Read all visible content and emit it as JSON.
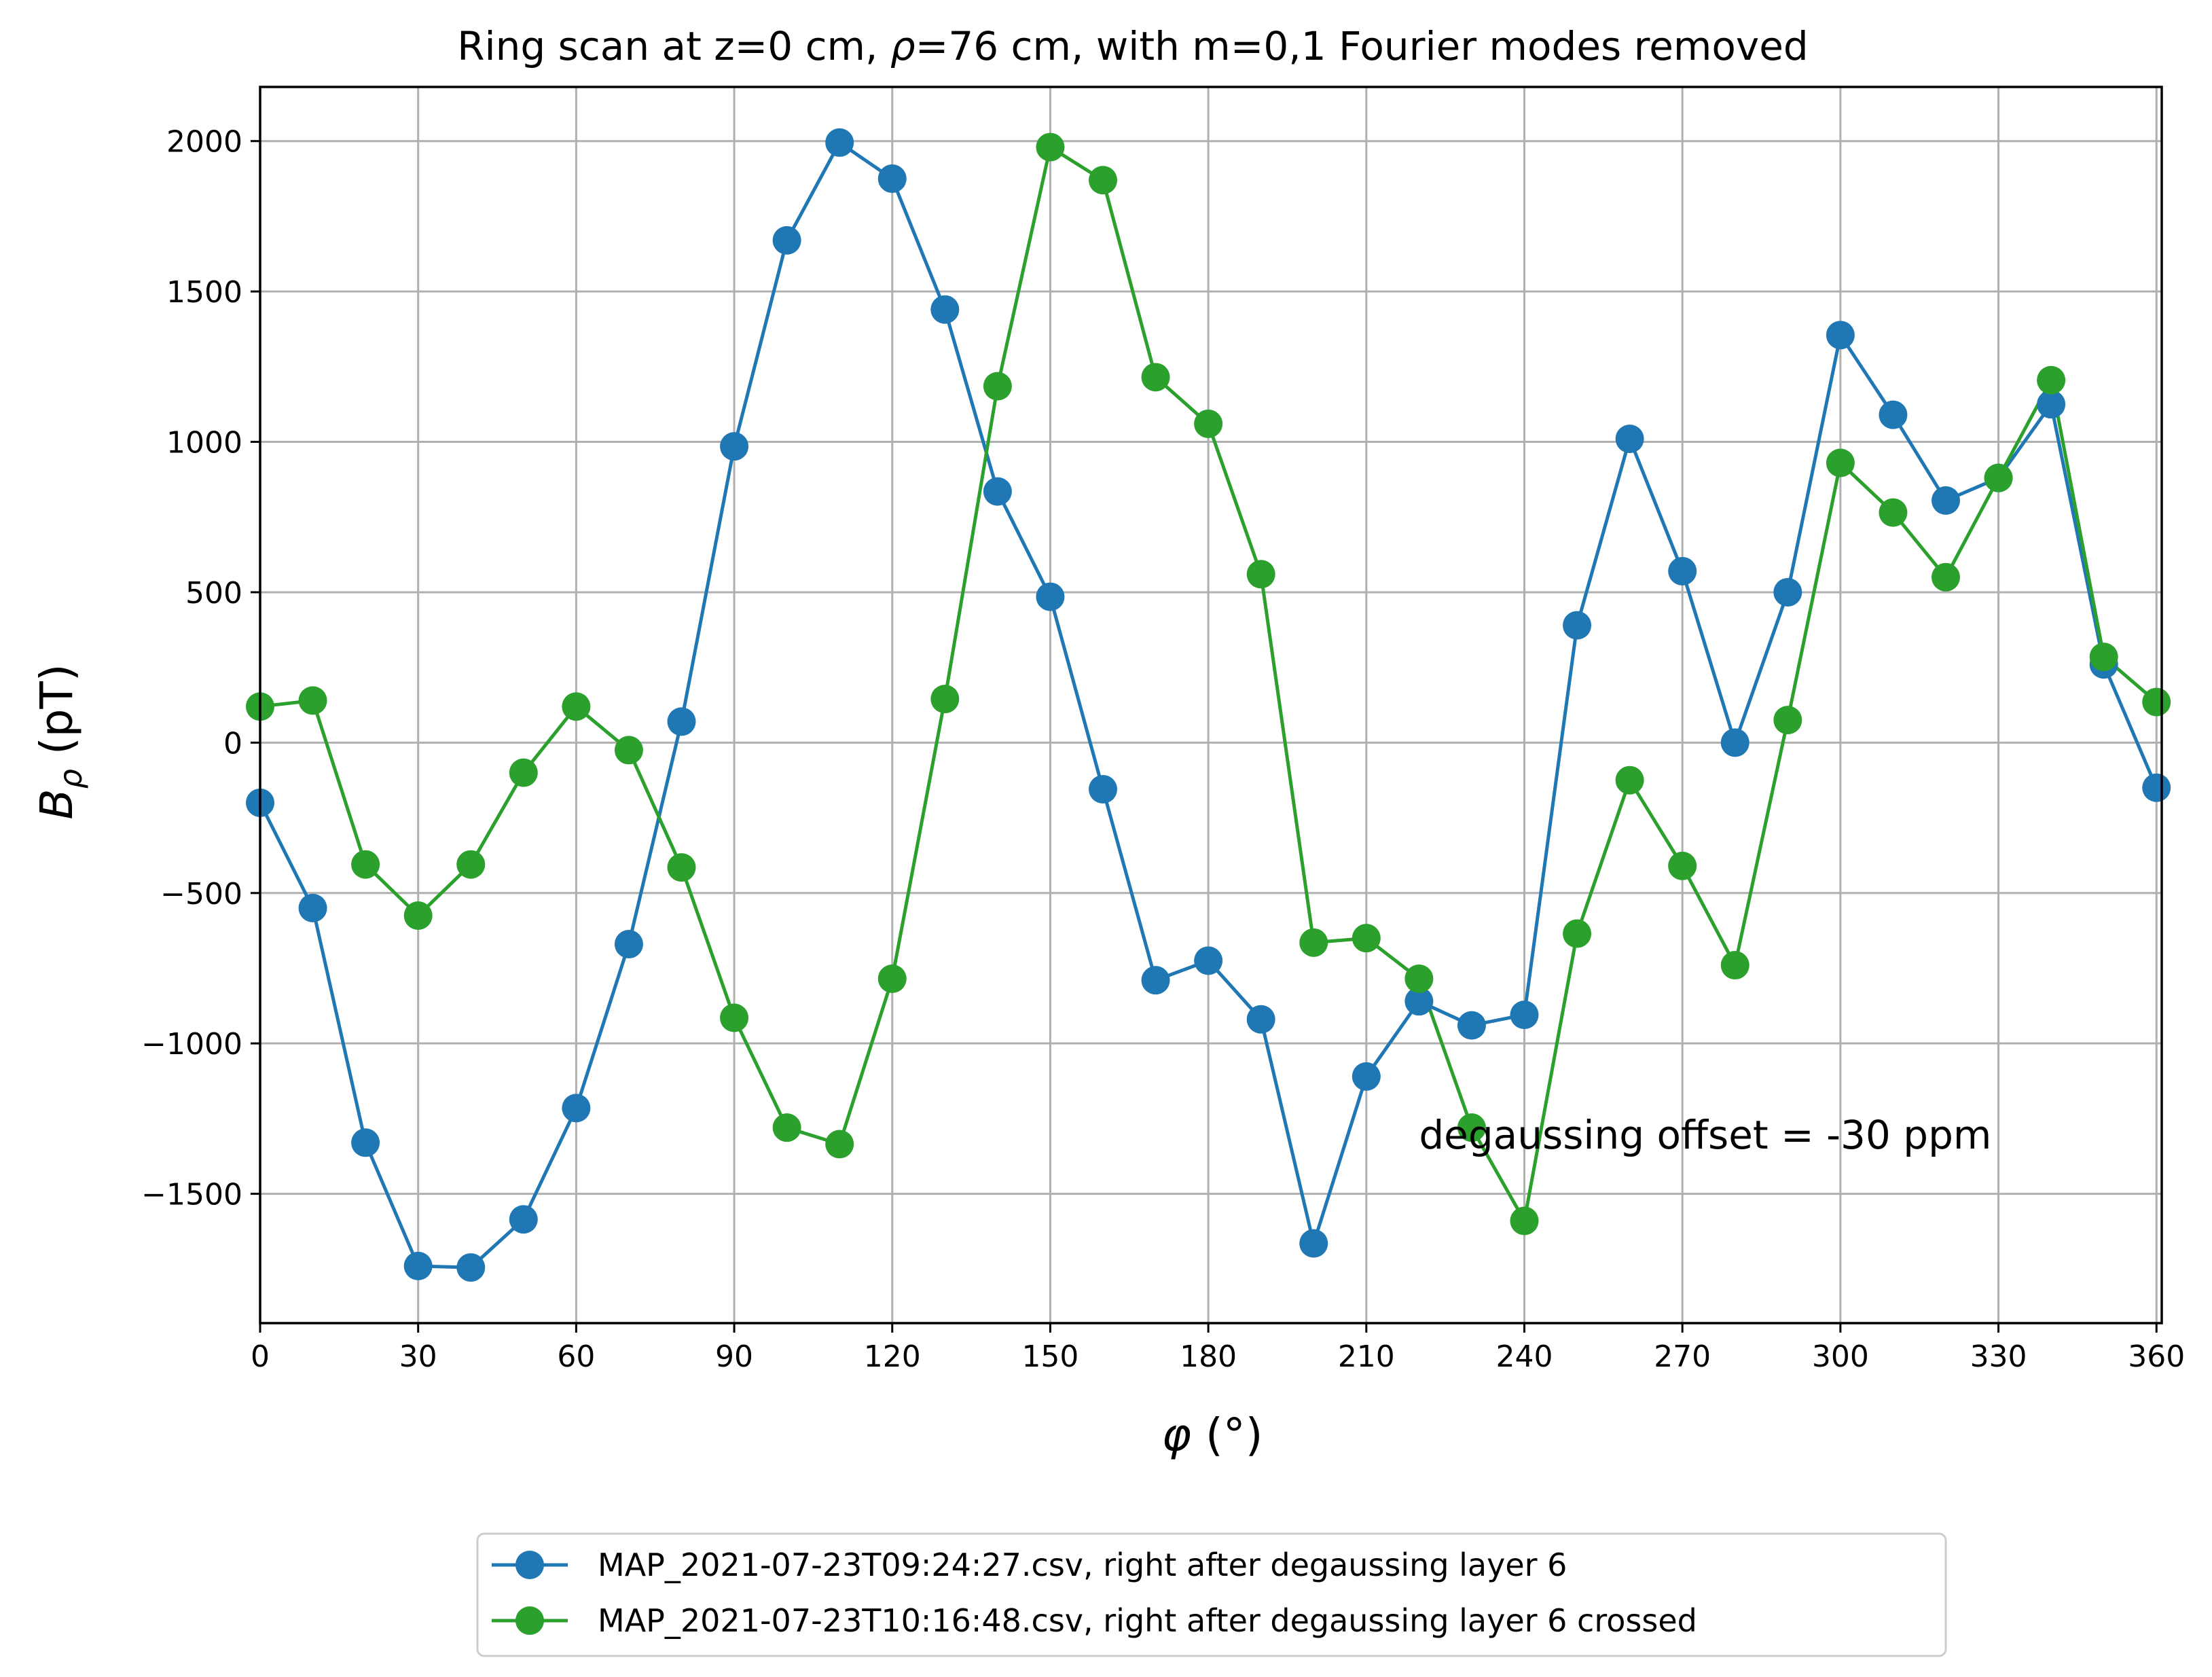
{
  "chart_data": {
    "type": "line",
    "title": "Ring scan at z=0 cm, ρ=76 cm, with m=0,1 Fourier modes removed",
    "title_parts": {
      "pre": "Ring scan at z=0 cm, ",
      "rho": "ρ",
      "post": "=76 cm, with m=0,1 Fourier modes removed"
    },
    "xlabel": "φ (°)",
    "xlabel_parts": {
      "symbol": "φ",
      "unit": " (°)"
    },
    "ylabel": "Bρ (pT)",
    "ylabel_parts": {
      "base": "B",
      "sub": "ρ",
      "unit": " (pT)"
    },
    "xlim": [
      0,
      361
    ],
    "ylim": [
      -1930,
      2180
    ],
    "xticks": [
      0,
      30,
      60,
      90,
      120,
      150,
      180,
      210,
      240,
      270,
      300,
      330,
      360
    ],
    "yticks": [
      -1500,
      -1000,
      -500,
      0,
      500,
      1000,
      1500,
      2000
    ],
    "ytick_labels": [
      "−1500",
      "−1000",
      "−500",
      "0",
      "500",
      "1000",
      "1500",
      "2000"
    ],
    "grid": true,
    "legend_position": "below the plot, centered",
    "annotation": {
      "text": "degaussing offset = -30 ppm",
      "x": 220,
      "y": -1350
    },
    "x": [
      0,
      10,
      20,
      30,
      40,
      50,
      60,
      70,
      80,
      90,
      100,
      110,
      120,
      130,
      140,
      150,
      160,
      170,
      180,
      190,
      200,
      210,
      220,
      230,
      240,
      250,
      260,
      270,
      280,
      290,
      300,
      310,
      320,
      330,
      340,
      350,
      360
    ],
    "series": [
      {
        "name": "MAP_2021-07-23T09:24:27.csv, right after degaussing layer 6",
        "color": "#1f77b4",
        "values": [
          -200,
          -550,
          -1330,
          -1740,
          -1745,
          -1585,
          -1215,
          -670,
          70,
          985,
          1670,
          1995,
          1875,
          1440,
          835,
          485,
          -155,
          -790,
          -725,
          -920,
          -1665,
          -1110,
          -860,
          -940,
          -905,
          390,
          1010,
          570,
          0,
          500,
          1355,
          1090,
          805,
          880,
          1125,
          260,
          -150
        ]
      },
      {
        "name": "MAP_2021-07-23T10:16:48.csv, right after degaussing layer 6 crossed",
        "color": "#2ca02c",
        "values": [
          120,
          140,
          -405,
          -575,
          -405,
          -100,
          120,
          -25,
          -415,
          -915,
          -1280,
          -1335,
          -785,
          145,
          1185,
          1980,
          1870,
          1215,
          1060,
          560,
          -665,
          -650,
          -785,
          -1280,
          -1590,
          -635,
          -125,
          -410,
          -740,
          75,
          930,
          765,
          550,
          880,
          1205,
          285,
          135
        ]
      }
    ]
  }
}
